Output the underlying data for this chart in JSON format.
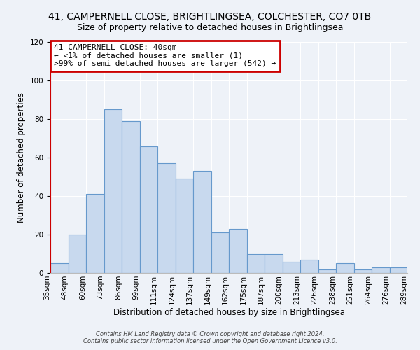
{
  "title": "41, CAMPERNELL CLOSE, BRIGHTLINGSEA, COLCHESTER, CO7 0TB",
  "subtitle": "Size of property relative to detached houses in Brightlingsea",
  "xlabel": "Distribution of detached houses by size in Brightlingsea",
  "ylabel": "Number of detached properties",
  "bins": [
    "35sqm",
    "48sqm",
    "60sqm",
    "73sqm",
    "86sqm",
    "99sqm",
    "111sqm",
    "124sqm",
    "137sqm",
    "149sqm",
    "162sqm",
    "175sqm",
    "187sqm",
    "200sqm",
    "213sqm",
    "226sqm",
    "238sqm",
    "251sqm",
    "264sqm",
    "276sqm",
    "289sqm"
  ],
  "values": [
    5,
    20,
    41,
    85,
    79,
    66,
    57,
    49,
    53,
    21,
    23,
    10,
    10,
    6,
    7,
    2,
    5,
    2,
    3,
    3
  ],
  "bar_color": "#c8d9ee",
  "bar_edge_color": "#6699cc",
  "ylim": [
    0,
    120
  ],
  "yticks": [
    0,
    20,
    40,
    60,
    80,
    100,
    120
  ],
  "annotation_box_color": "#ffffff",
  "annotation_box_edge": "#cc0000",
  "annotation_line1": "41 CAMPERNELL CLOSE: 40sqm",
  "annotation_line2": "← <1% of detached houses are smaller (1)",
  "annotation_line3": ">99% of semi-detached houses are larger (542) →",
  "footer1": "Contains HM Land Registry data © Crown copyright and database right 2024.",
  "footer2": "Contains public sector information licensed under the Open Government Licence v3.0.",
  "bg_color": "#eef2f8",
  "grid_color": "#ffffff",
  "title_fontsize": 10,
  "subtitle_fontsize": 9,
  "axis_label_fontsize": 8.5,
  "tick_fontsize": 7.5
}
